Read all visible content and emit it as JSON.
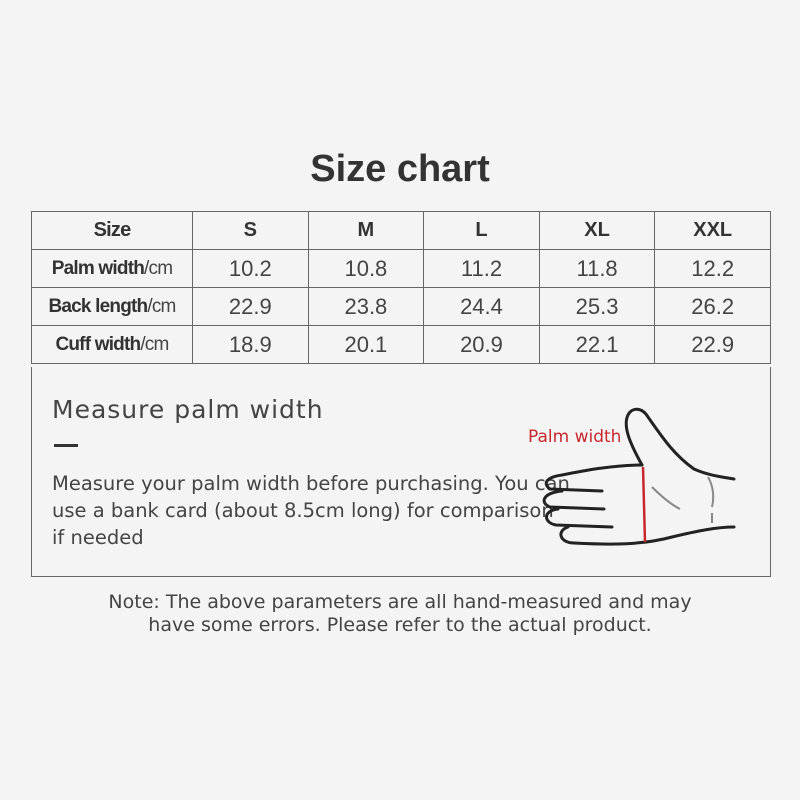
{
  "title": "Size chart",
  "table": {
    "header": {
      "label": "Size",
      "sizes": [
        "S",
        "M",
        "L",
        "XL",
        "XXL"
      ]
    },
    "rows": [
      {
        "label": "Palm width",
        "unit": "/cm",
        "values": [
          "10.2",
          "10.8",
          "11.2",
          "11.8",
          "12.2"
        ]
      },
      {
        "label": "Back length",
        "unit": "/cm",
        "values": [
          "22.9",
          "23.8",
          "24.4",
          "25.3",
          "26.2"
        ]
      },
      {
        "label": "Cuff width",
        "unit": "/cm",
        "values": [
          "18.9",
          "20.1",
          "20.9",
          "22.1",
          "22.9"
        ]
      }
    ]
  },
  "measure": {
    "heading": "Measure palm width",
    "description": "Measure your palm width before purchasing. You can use a bank card (about 8.5cm long) for comparison if needed",
    "diagram_label": "Palm width",
    "accent": "#c8272d"
  },
  "note": {
    "line1": "Note: The above parameters are all hand-measured and may",
    "line2": "have some errors. Please refer to the actual product."
  }
}
